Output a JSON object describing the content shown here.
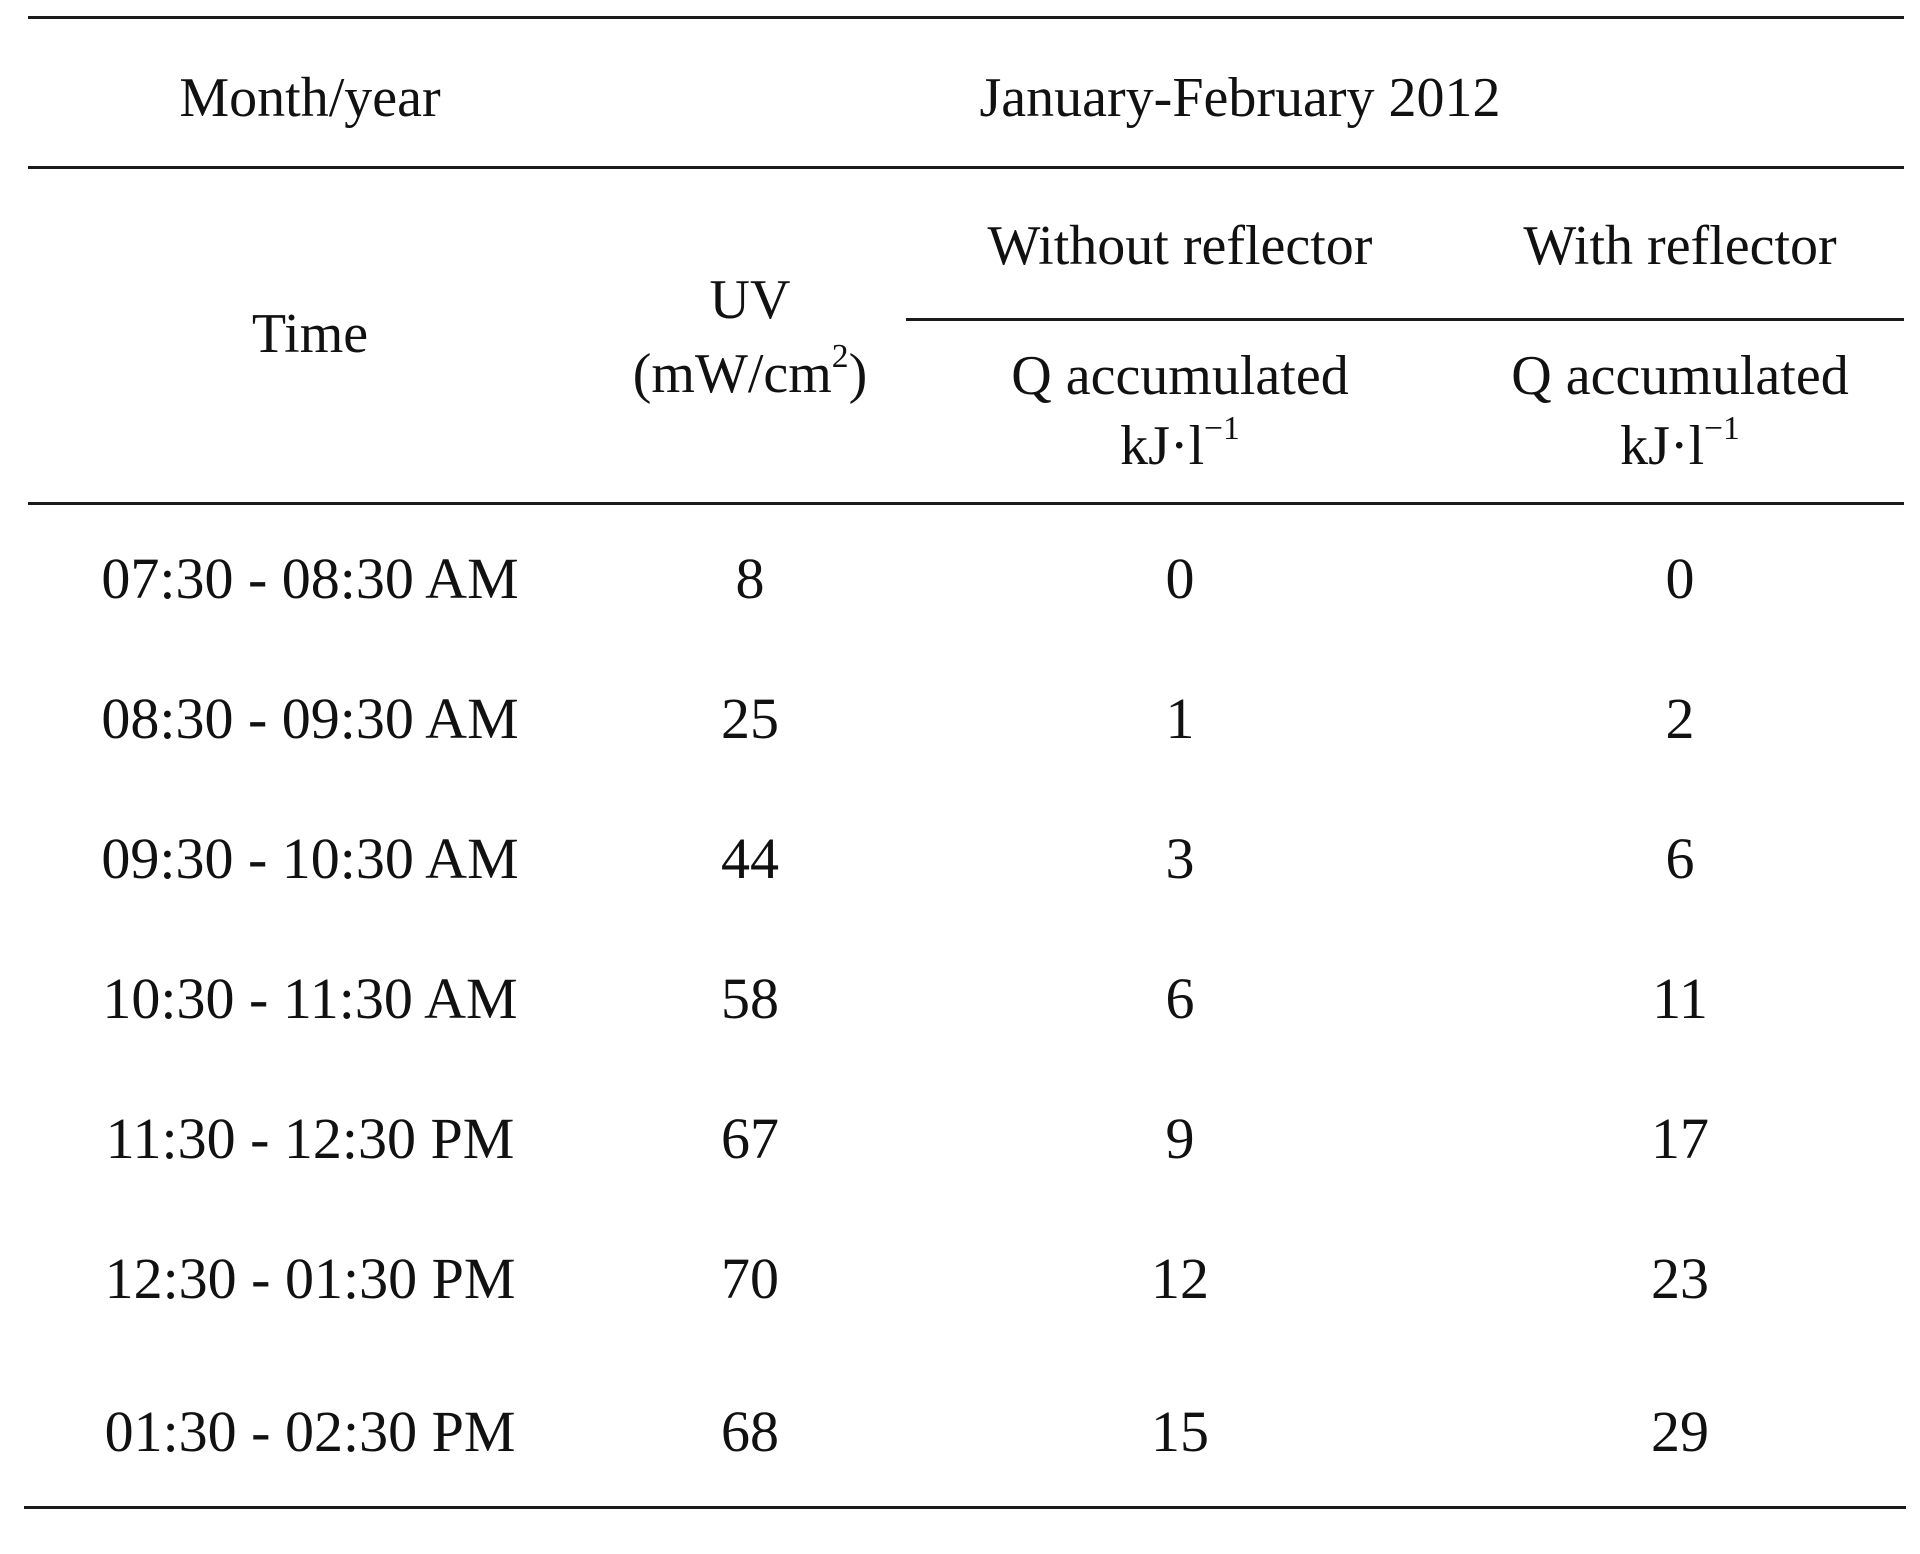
{
  "table": {
    "header": {
      "month_year_label": "Month/year",
      "period": "January-February 2012",
      "time_label": "Time",
      "uv_label": "UV",
      "uv_unit_base": "(mW/cm",
      "uv_unit_exp": "2",
      "uv_unit_close": ")",
      "without_reflector": "Without reflector",
      "with_reflector": "With reflector",
      "q_label": "Q accumulated",
      "q_unit_base": "kJ·l",
      "q_unit_exp": "−1"
    },
    "rows": [
      {
        "time": "07:30 - 08:30 AM",
        "uv": "8",
        "without": "0",
        "with": "0"
      },
      {
        "time": "08:30 - 09:30 AM",
        "uv": "25",
        "without": "1",
        "with": "2"
      },
      {
        "time": "09:30 - 10:30 AM",
        "uv": "44",
        "without": "3",
        "with": "6"
      },
      {
        "time": "10:30 - 11:30 AM",
        "uv": "58",
        "without": "6",
        "with": "11"
      },
      {
        "time": "11:30 - 12:30 PM",
        "uv": "67",
        "without": "9",
        "with": "17"
      },
      {
        "time": "12:30 - 01:30 PM",
        "uv": "70",
        "without": "12",
        "with": "23"
      },
      {
        "time": "01:30 - 02:30 PM",
        "uv": "68",
        "without": "15",
        "with": "29"
      }
    ]
  }
}
